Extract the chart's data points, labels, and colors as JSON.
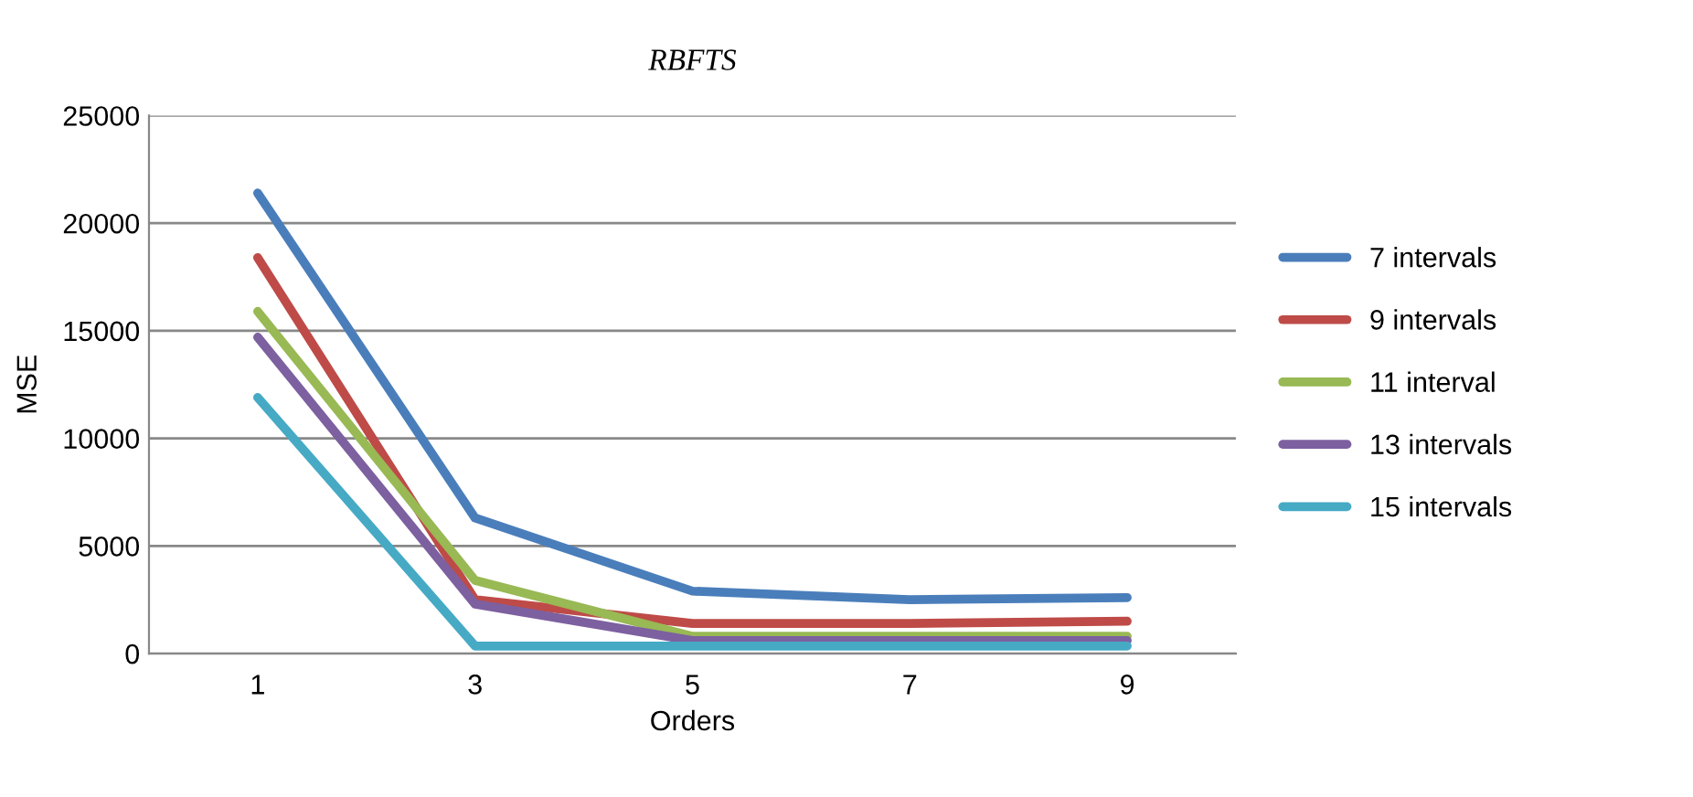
{
  "chart_data": {
    "type": "line",
    "title": "RBFTS",
    "xlabel": "Orders",
    "ylabel": "MSE",
    "categories": [
      "1",
      "3",
      "5",
      "7",
      "9"
    ],
    "series": [
      {
        "name": "7 intervals",
        "color": "#4a7ebb",
        "values": [
          21400,
          6300,
          2900,
          2500,
          2600
        ]
      },
      {
        "name": "9 intervals",
        "color": "#be4b48",
        "values": [
          18400,
          2500,
          1400,
          1400,
          1500
        ]
      },
      {
        "name": "11 interval",
        "color": "#98b954",
        "values": [
          15900,
          3400,
          800,
          800,
          800
        ]
      },
      {
        "name": "13 intervals",
        "color": "#7d60a0",
        "values": [
          14700,
          2300,
          600,
          600,
          600
        ]
      },
      {
        "name": "15 intervals",
        "color": "#46aac5",
        "values": [
          11900,
          350,
          350,
          350,
          350
        ]
      }
    ],
    "ylim": [
      0,
      25000
    ],
    "yticks": [
      0,
      5000,
      10000,
      15000,
      20000,
      25000
    ],
    "grid": "y",
    "legend": "right",
    "marker": "none",
    "line_style": "solid"
  }
}
